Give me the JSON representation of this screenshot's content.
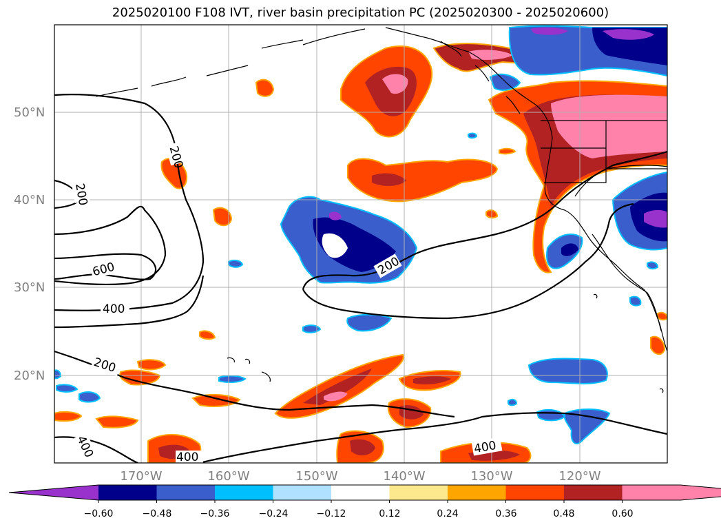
{
  "title": "2025020100 F108 IVT, river basin precipitation PC (2025020300 - 2025020600)",
  "lat_labels": [
    "50°N",
    "40°N",
    "30°N",
    "20°N"
  ],
  "lon_labels": [
    "170°W",
    "160°W",
    "150°W",
    "140°W",
    "130°W",
    "120°W"
  ],
  "colorbar": {
    "extend": "both",
    "colors": [
      "#9932cc",
      "#00008b",
      "#3a5fcd",
      "#00bfff",
      "#b0e2ff",
      "#ffffff",
      "#fde98d",
      "#ffa500",
      "#ff4500",
      "#b22222",
      "#ff82ab",
      "#ff82ab"
    ],
    "tick_labels": [
      "−0.60",
      "−0.48",
      "−0.36",
      "−0.24",
      "−0.12",
      "0.12",
      "0.24",
      "0.36",
      "0.48",
      "0.60"
    ]
  },
  "contour_labels": [
    "200",
    "200",
    "200",
    "600",
    "400",
    "200",
    "400",
    "400",
    "400"
  ]
}
